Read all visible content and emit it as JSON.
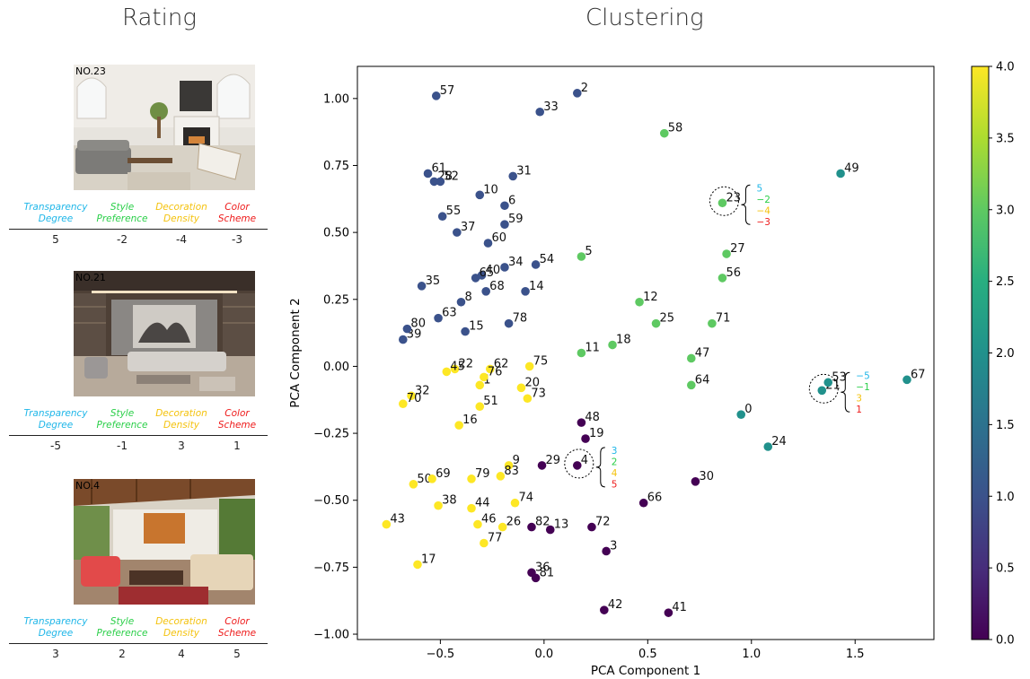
{
  "titles": {
    "rating": "Rating",
    "clustering": "Clustering"
  },
  "rating_headers": [
    {
      "line1": "Transparency",
      "line2": "Degree",
      "color": "#1fb6e8"
    },
    {
      "line1": "Style",
      "line2": "Preference",
      "color": "#2ccf4a"
    },
    {
      "line1": "Decoration",
      "line2": "Density",
      "color": "#f4c20d"
    },
    {
      "line1": "Color",
      "line2": "Scheme",
      "color": "#ee1c1c"
    }
  ],
  "rating_cards": [
    {
      "label": "NO.23",
      "values": [
        "5",
        "-2",
        "-4",
        "-3"
      ]
    },
    {
      "label": "NO.21",
      "values": [
        "-5",
        "-1",
        "3",
        "1"
      ]
    },
    {
      "label": "NO.4",
      "values": [
        "3",
        "2",
        "4",
        "5"
      ]
    }
  ],
  "chart_data": {
    "type": "scatter",
    "title": "",
    "xlabel": "PCA Component 1",
    "ylabel": "PCA Component 2",
    "xlim": [
      -0.9,
      1.88
    ],
    "ylim": [
      -1.02,
      1.12
    ],
    "xticks": [
      -0.5,
      0.0,
      0.5,
      1.0,
      1.5
    ],
    "xtick_labels": [
      "−0.5",
      "0.0",
      "0.5",
      "1.0",
      "1.5"
    ],
    "yticks": [
      -1.0,
      -0.75,
      -0.5,
      -0.25,
      0.0,
      0.25,
      0.5,
      0.75,
      1.0
    ],
    "ytick_labels": [
      "−1.00",
      "−0.75",
      "−0.50",
      "−0.25",
      "0.00",
      "0.25",
      "0.50",
      "0.75",
      "1.00"
    ],
    "colorbar": {
      "min": 0.0,
      "max": 4.0,
      "colormap": "viridis",
      "ticks": [
        0.0,
        0.5,
        1.0,
        1.5,
        2.0,
        2.5,
        3.0,
        3.5,
        4.0
      ],
      "tick_labels": [
        "0.0",
        "0.5",
        "1.0",
        "1.5",
        "2.0",
        "2.5",
        "3.0",
        "3.5",
        "4.0"
      ]
    },
    "points": [
      {
        "id": "0",
        "x": 0.95,
        "y": -0.18,
        "cluster": 2
      },
      {
        "id": "1",
        "x": -0.31,
        "y": -0.07,
        "cluster": 4
      },
      {
        "id": "2",
        "x": 0.16,
        "y": 1.02,
        "cluster": 1
      },
      {
        "id": "3",
        "x": 0.3,
        "y": -0.69,
        "cluster": 0
      },
      {
        "id": "4",
        "x": 0.16,
        "y": -0.37,
        "cluster": 0
      },
      {
        "id": "5",
        "x": 0.18,
        "y": 0.41,
        "cluster": 3
      },
      {
        "id": "6",
        "x": -0.19,
        "y": 0.6,
        "cluster": 1
      },
      {
        "id": "8",
        "x": -0.4,
        "y": 0.24,
        "cluster": 1
      },
      {
        "id": "9",
        "x": -0.17,
        "y": -0.37,
        "cluster": 4
      },
      {
        "id": "10",
        "x": -0.31,
        "y": 0.64,
        "cluster": 1
      },
      {
        "id": "11",
        "x": 0.18,
        "y": 0.05,
        "cluster": 3
      },
      {
        "id": "12",
        "x": 0.46,
        "y": 0.24,
        "cluster": 3
      },
      {
        "id": "13",
        "x": 0.03,
        "y": -0.61,
        "cluster": 0
      },
      {
        "id": "14",
        "x": -0.09,
        "y": 0.28,
        "cluster": 1
      },
      {
        "id": "15",
        "x": -0.38,
        "y": 0.13,
        "cluster": 1
      },
      {
        "id": "16",
        "x": -0.41,
        "y": -0.22,
        "cluster": 4
      },
      {
        "id": "17",
        "x": -0.61,
        "y": -0.74,
        "cluster": 4
      },
      {
        "id": "18",
        "x": 0.33,
        "y": 0.08,
        "cluster": 3
      },
      {
        "id": "19",
        "x": 0.2,
        "y": -0.27,
        "cluster": 0
      },
      {
        "id": "20",
        "x": -0.11,
        "y": -0.08,
        "cluster": 4
      },
      {
        "id": "21",
        "x": 1.34,
        "y": -0.09,
        "cluster": 2
      },
      {
        "id": "22",
        "x": -0.43,
        "y": -0.01,
        "cluster": 4
      },
      {
        "id": "23",
        "x": 0.86,
        "y": 0.61,
        "cluster": 3
      },
      {
        "id": "24",
        "x": 1.08,
        "y": -0.3,
        "cluster": 2
      },
      {
        "id": "25",
        "x": 0.54,
        "y": 0.16,
        "cluster": 3
      },
      {
        "id": "26",
        "x": -0.2,
        "y": -0.6,
        "cluster": 4
      },
      {
        "id": "27",
        "x": 0.88,
        "y": 0.42,
        "cluster": 3
      },
      {
        "id": "28",
        "x": -0.53,
        "y": 0.69,
        "cluster": 1
      },
      {
        "id": "29",
        "x": -0.01,
        "y": -0.37,
        "cluster": 0
      },
      {
        "id": "30",
        "x": 0.73,
        "y": -0.43,
        "cluster": 0
      },
      {
        "id": "31",
        "x": -0.15,
        "y": 0.71,
        "cluster": 1
      },
      {
        "id": "32",
        "x": -0.64,
        "y": -0.11,
        "cluster": 4
      },
      {
        "id": "33",
        "x": -0.02,
        "y": 0.95,
        "cluster": 1
      },
      {
        "id": "34",
        "x": -0.19,
        "y": 0.37,
        "cluster": 1
      },
      {
        "id": "35",
        "x": -0.59,
        "y": 0.3,
        "cluster": 1
      },
      {
        "id": "36",
        "x": -0.06,
        "y": -0.77,
        "cluster": 0
      },
      {
        "id": "37",
        "x": -0.42,
        "y": 0.5,
        "cluster": 1
      },
      {
        "id": "38",
        "x": -0.51,
        "y": -0.52,
        "cluster": 4
      },
      {
        "id": "39",
        "x": -0.68,
        "y": 0.1,
        "cluster": 1
      },
      {
        "id": "40",
        "x": -0.3,
        "y": 0.34,
        "cluster": 1
      },
      {
        "id": "41",
        "x": 0.6,
        "y": -0.92,
        "cluster": 0
      },
      {
        "id": "42",
        "x": 0.29,
        "y": -0.91,
        "cluster": 0
      },
      {
        "id": "43",
        "x": -0.76,
        "y": -0.59,
        "cluster": 4
      },
      {
        "id": "44",
        "x": -0.35,
        "y": -0.53,
        "cluster": 4
      },
      {
        "id": "45",
        "x": -0.47,
        "y": -0.02,
        "cluster": 4
      },
      {
        "id": "46",
        "x": -0.32,
        "y": -0.59,
        "cluster": 4
      },
      {
        "id": "47",
        "x": 0.71,
        "y": 0.03,
        "cluster": 3
      },
      {
        "id": "48",
        "x": 0.18,
        "y": -0.21,
        "cluster": 0
      },
      {
        "id": "49",
        "x": 1.43,
        "y": 0.72,
        "cluster": 2
      },
      {
        "id": "50",
        "x": -0.63,
        "y": -0.44,
        "cluster": 4
      },
      {
        "id": "51",
        "x": -0.31,
        "y": -0.15,
        "cluster": 4
      },
      {
        "id": "52",
        "x": -0.5,
        "y": 0.69,
        "cluster": 1
      },
      {
        "id": "53",
        "x": 1.37,
        "y": -0.06,
        "cluster": 2
      },
      {
        "id": "54",
        "x": -0.04,
        "y": 0.38,
        "cluster": 1
      },
      {
        "id": "55",
        "x": -0.49,
        "y": 0.56,
        "cluster": 1
      },
      {
        "id": "56",
        "x": 0.86,
        "y": 0.33,
        "cluster": 3
      },
      {
        "id": "57",
        "x": -0.52,
        "y": 1.01,
        "cluster": 1
      },
      {
        "id": "58",
        "x": 0.58,
        "y": 0.87,
        "cluster": 3
      },
      {
        "id": "59",
        "x": -0.19,
        "y": 0.53,
        "cluster": 1
      },
      {
        "id": "60",
        "x": -0.27,
        "y": 0.46,
        "cluster": 1
      },
      {
        "id": "61",
        "x": -0.56,
        "y": 0.72,
        "cluster": 1
      },
      {
        "id": "62",
        "x": -0.26,
        "y": -0.01,
        "cluster": 4
      },
      {
        "id": "63",
        "x": -0.51,
        "y": 0.18,
        "cluster": 1
      },
      {
        "id": "64",
        "x": 0.71,
        "y": -0.07,
        "cluster": 3
      },
      {
        "id": "65",
        "x": -0.33,
        "y": 0.33,
        "cluster": 1
      },
      {
        "id": "66",
        "x": 0.48,
        "y": -0.51,
        "cluster": 0
      },
      {
        "id": "67",
        "x": 1.75,
        "y": -0.05,
        "cluster": 2
      },
      {
        "id": "68",
        "x": -0.28,
        "y": 0.28,
        "cluster": 1
      },
      {
        "id": "69",
        "x": -0.54,
        "y": -0.42,
        "cluster": 4
      },
      {
        "id": "70",
        "x": -0.68,
        "y": -0.14,
        "cluster": 4
      },
      {
        "id": "71",
        "x": 0.81,
        "y": 0.16,
        "cluster": 3
      },
      {
        "id": "72",
        "x": 0.23,
        "y": -0.6,
        "cluster": 0
      },
      {
        "id": "73",
        "x": -0.08,
        "y": -0.12,
        "cluster": 4
      },
      {
        "id": "74",
        "x": -0.14,
        "y": -0.51,
        "cluster": 4
      },
      {
        "id": "75",
        "x": -0.07,
        "y": 0.0,
        "cluster": 4
      },
      {
        "id": "76",
        "x": -0.29,
        "y": -0.04,
        "cluster": 4
      },
      {
        "id": "77",
        "x": -0.29,
        "y": -0.66,
        "cluster": 4
      },
      {
        "id": "78",
        "x": -0.17,
        "y": 0.16,
        "cluster": 1
      },
      {
        "id": "79",
        "x": -0.35,
        "y": -0.42,
        "cluster": 4
      },
      {
        "id": "80",
        "x": -0.66,
        "y": 0.14,
        "cluster": 1
      },
      {
        "id": "81",
        "x": -0.04,
        "y": -0.79,
        "cluster": 0
      },
      {
        "id": "82",
        "x": -0.06,
        "y": -0.6,
        "cluster": 0
      },
      {
        "id": "83",
        "x": -0.21,
        "y": -0.41,
        "cluster": 4
      }
    ],
    "annotations": [
      {
        "target": "23",
        "values": [
          "5",
          "−2",
          "−4",
          "−3"
        ]
      },
      {
        "target": "21",
        "values": [
          "−5",
          "−1",
          "3",
          "1"
        ]
      },
      {
        "target": "4",
        "values": [
          "3",
          "2",
          "4",
          "5"
        ]
      }
    ]
  },
  "colors": {
    "cluster_colors": [
      "#440154",
      "#3b528b",
      "#21918c",
      "#5ec962",
      "#fde725"
    ],
    "annotation_colors": [
      "#1fb6e8",
      "#2ccf4a",
      "#f4c20d",
      "#ee1c1c"
    ]
  }
}
